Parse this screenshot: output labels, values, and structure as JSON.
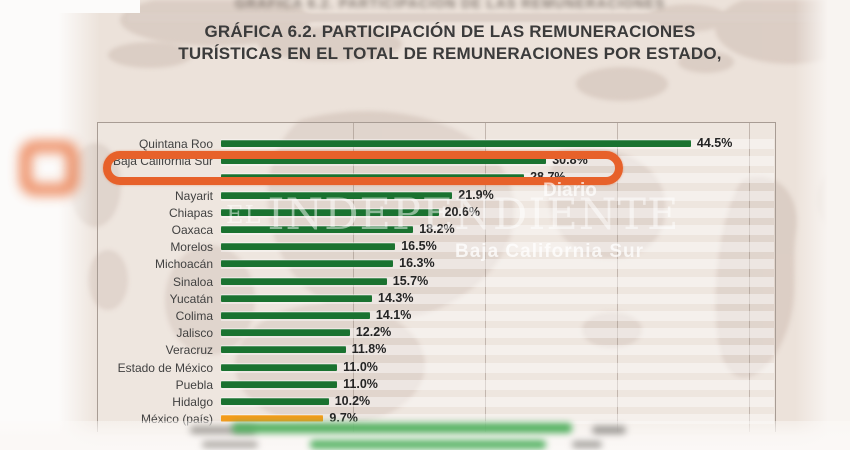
{
  "header": {
    "blurred_strip_text": "GRÁFICA 6.2. PARTICIPACIÓN DE LAS REMUNERACIONES"
  },
  "title": {
    "line1": "GRÁFICA 6.2. PARTICIPACIÓN DE LAS REMUNERACIONES",
    "line2": "TURÍSTICAS EN EL TOTAL DE REMUNERACIONES POR ESTADO,"
  },
  "watermark": {
    "diario": "Diario",
    "name_prefix": "EL",
    "name": "INDEPENDIENTE",
    "subtitle": "Baja California Sur"
  },
  "colors": {
    "bar_green": "#1a7230",
    "bar_orange": "#f39c1a",
    "highlight_orange": "#e7612a",
    "background_beige": "#ece2da",
    "map_watermark": "#d9cac1"
  },
  "chart_data": {
    "type": "bar",
    "orientation": "horizontal",
    "title": "GRÁFICA 6.2. PARTICIPACIÓN DE LAS REMUNERACIONES TURÍSTICAS EN EL TOTAL DE REMUNERACIONES POR ESTADO",
    "unit": "%",
    "xlim": [
      0,
      50
    ],
    "grid": true,
    "gridlines_pct": [
      12.5,
      25,
      37.5,
      50
    ],
    "categories": [
      "Quintana Roo",
      "Baja California Sur",
      "",
      "Nayarit",
      "Chiapas",
      "Oaxaca",
      "Morelos",
      "Michoacán",
      "Sinaloa",
      "Yucatán",
      "Colima",
      "Jalisco",
      "Veracruz",
      "Estado de México",
      "Puebla",
      "Hidalgo",
      "México (país)"
    ],
    "values": [
      44.5,
      30.8,
      28.7,
      21.9,
      20.6,
      18.2,
      16.5,
      16.3,
      15.7,
      14.3,
      14.1,
      12.2,
      11.8,
      11.0,
      11.0,
      10.2,
      9.7
    ],
    "value_labels": [
      "44.5%",
      "30.8%",
      "28.7%",
      "21.9%",
      "20.6%",
      "18.2%",
      "16.5%",
      "16.3%",
      "15.7%",
      "14.3%",
      "14.1%",
      "12.2%",
      "11.8%",
      "11.0%",
      "11.0%",
      "10.2%",
      "9.7%"
    ],
    "highlight_index": 1,
    "obscured_index": 2,
    "obscured_note": "third row label and bar hidden behind orange highlight box; value only partially visible",
    "national_row_index": 16,
    "obscured_bottom_rows": 2
  }
}
